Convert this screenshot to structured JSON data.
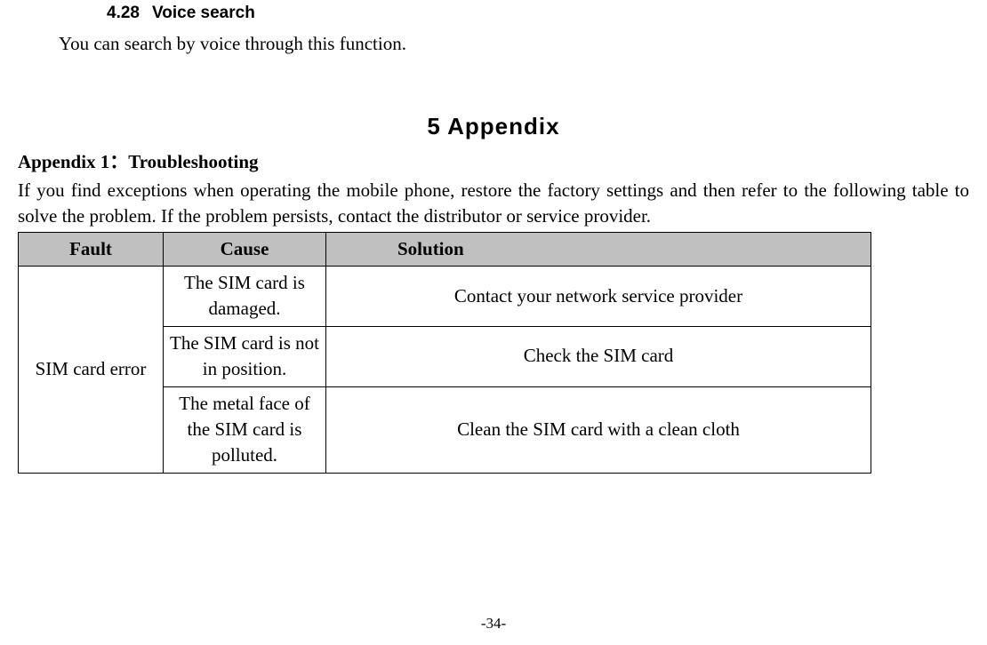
{
  "section": {
    "number": "4.28",
    "title": "Voice search",
    "body": "You can search by voice through this function."
  },
  "chapter": {
    "number": "5",
    "title": "Appendix"
  },
  "appendix": {
    "label": "Appendix 1：Troubleshooting",
    "intro": "If you find exceptions when operating the mobile phone, restore the factory settings and then refer to the following table to solve the problem. If the problem persists, contact the distributor or service provider."
  },
  "table": {
    "headers": {
      "fault": "Fault",
      "cause": "Cause",
      "solution": "Solution"
    },
    "fault_label": "SIM card error",
    "rows": [
      {
        "cause": "The SIM card is damaged.",
        "solution": "Contact your network service provider"
      },
      {
        "cause": "The SIM card is not in position.",
        "solution": "Check the SIM card"
      },
      {
        "cause": "The metal face of the SIM card is polluted.",
        "solution": "Clean the SIM card with a clean cloth"
      }
    ]
  },
  "page_number": "-34-",
  "colors": {
    "header_bg": "#c0c0c0",
    "border": "#000000",
    "text": "#000000",
    "background": "#ffffff"
  },
  "fonts": {
    "body": "Times New Roman",
    "heading_sans": "Arial",
    "chapter": "SimHei"
  }
}
